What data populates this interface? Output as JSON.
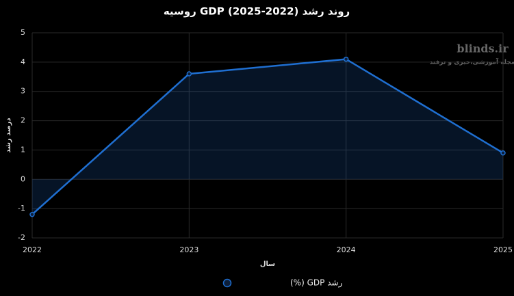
{
  "chart_data": {
    "type": "line",
    "title": "روند رشد GDP (2025-2022) روسیه",
    "x_label": "سال",
    "y_label": "درصد رشد",
    "x": [
      2022,
      2023,
      2024,
      2025
    ],
    "series": [
      {
        "name": "رشد GDP (%)",
        "color": "#1f6fd1",
        "values": [
          -1.2,
          3.6,
          4.1,
          0.9
        ]
      }
    ],
    "xlim": [
      2022,
      2025
    ],
    "xticks": [
      2022,
      2023,
      2024,
      2025
    ],
    "ylim": [
      -2,
      5
    ],
    "yticks": [
      -2,
      -1,
      0,
      1,
      2,
      3,
      4,
      5
    ],
    "grid": true,
    "fill_area": true,
    "legend_position": "bottom"
  },
  "watermark": {
    "brand": "blinds.ir",
    "tagline": "مجله آموزشی،خبری و ترفند"
  }
}
